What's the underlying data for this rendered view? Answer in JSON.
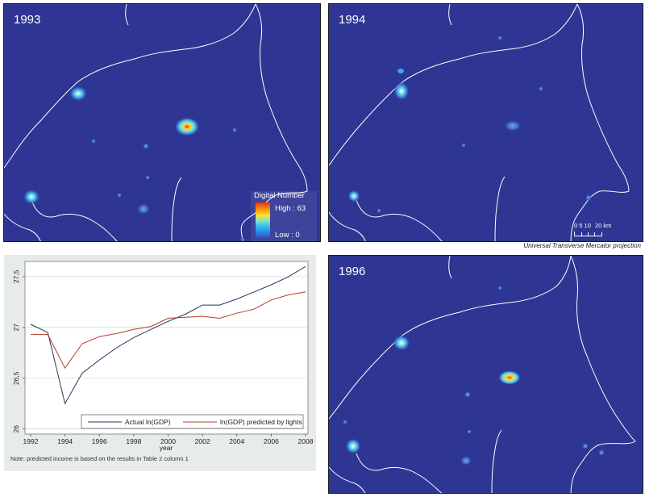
{
  "maps": [
    {
      "year": "1993"
    },
    {
      "year": "1994"
    },
    {
      "year": "1996"
    }
  ],
  "legend": {
    "title": "Digital Number",
    "high": "High : 63",
    "low": "Low : 0"
  },
  "scale_bar": {
    "labels": [
      "0",
      "5",
      "10",
      "20 km"
    ]
  },
  "projection_note": "Universal Transverse Mercator projection",
  "colors": {
    "map_background": "#2e3593",
    "border_line": "#ffffff",
    "actual_series": "#1f3b5c",
    "predicted_series": "#b63a2a",
    "chart_background": "#e8ebeb"
  },
  "chart_note": "Note: predicted income is based on the results in Table 2 column 1",
  "chart_data": {
    "type": "line",
    "xlabel": "year",
    "ylabel": "",
    "xlim": [
      1992,
      2008
    ],
    "ylim": [
      25.95,
      27.65
    ],
    "x_ticks": [
      1992,
      1994,
      1996,
      1998,
      2000,
      2002,
      2004,
      2006,
      2008
    ],
    "y_ticks": [
      26,
      26.5,
      27,
      27.5
    ],
    "y_tick_labels": [
      "26",
      "26,5",
      "27",
      "27,5"
    ],
    "grid": true,
    "legend_position": "bottom-right",
    "x": [
      1992,
      1993,
      1994,
      1995,
      1996,
      1997,
      1998,
      1999,
      2000,
      2001,
      2002,
      2003,
      2004,
      2005,
      2006,
      2007,
      2008
    ],
    "series": [
      {
        "name": "Actual ln(GDP)",
        "color": "#1f3b5c",
        "values": [
          27.03,
          26.95,
          26.25,
          26.55,
          26.68,
          26.8,
          26.9,
          26.98,
          27.06,
          27.13,
          27.22,
          27.22,
          27.28,
          27.35,
          27.42,
          27.5,
          27.6
        ]
      },
      {
        "name": "ln(GDP) predicted by lights",
        "color": "#b63a2a",
        "values": [
          26.93,
          26.93,
          26.6,
          26.84,
          26.91,
          26.94,
          26.98,
          27.01,
          27.09,
          27.1,
          27.11,
          27.09,
          27.14,
          27.18,
          27.27,
          27.32,
          27.35
        ]
      }
    ]
  }
}
